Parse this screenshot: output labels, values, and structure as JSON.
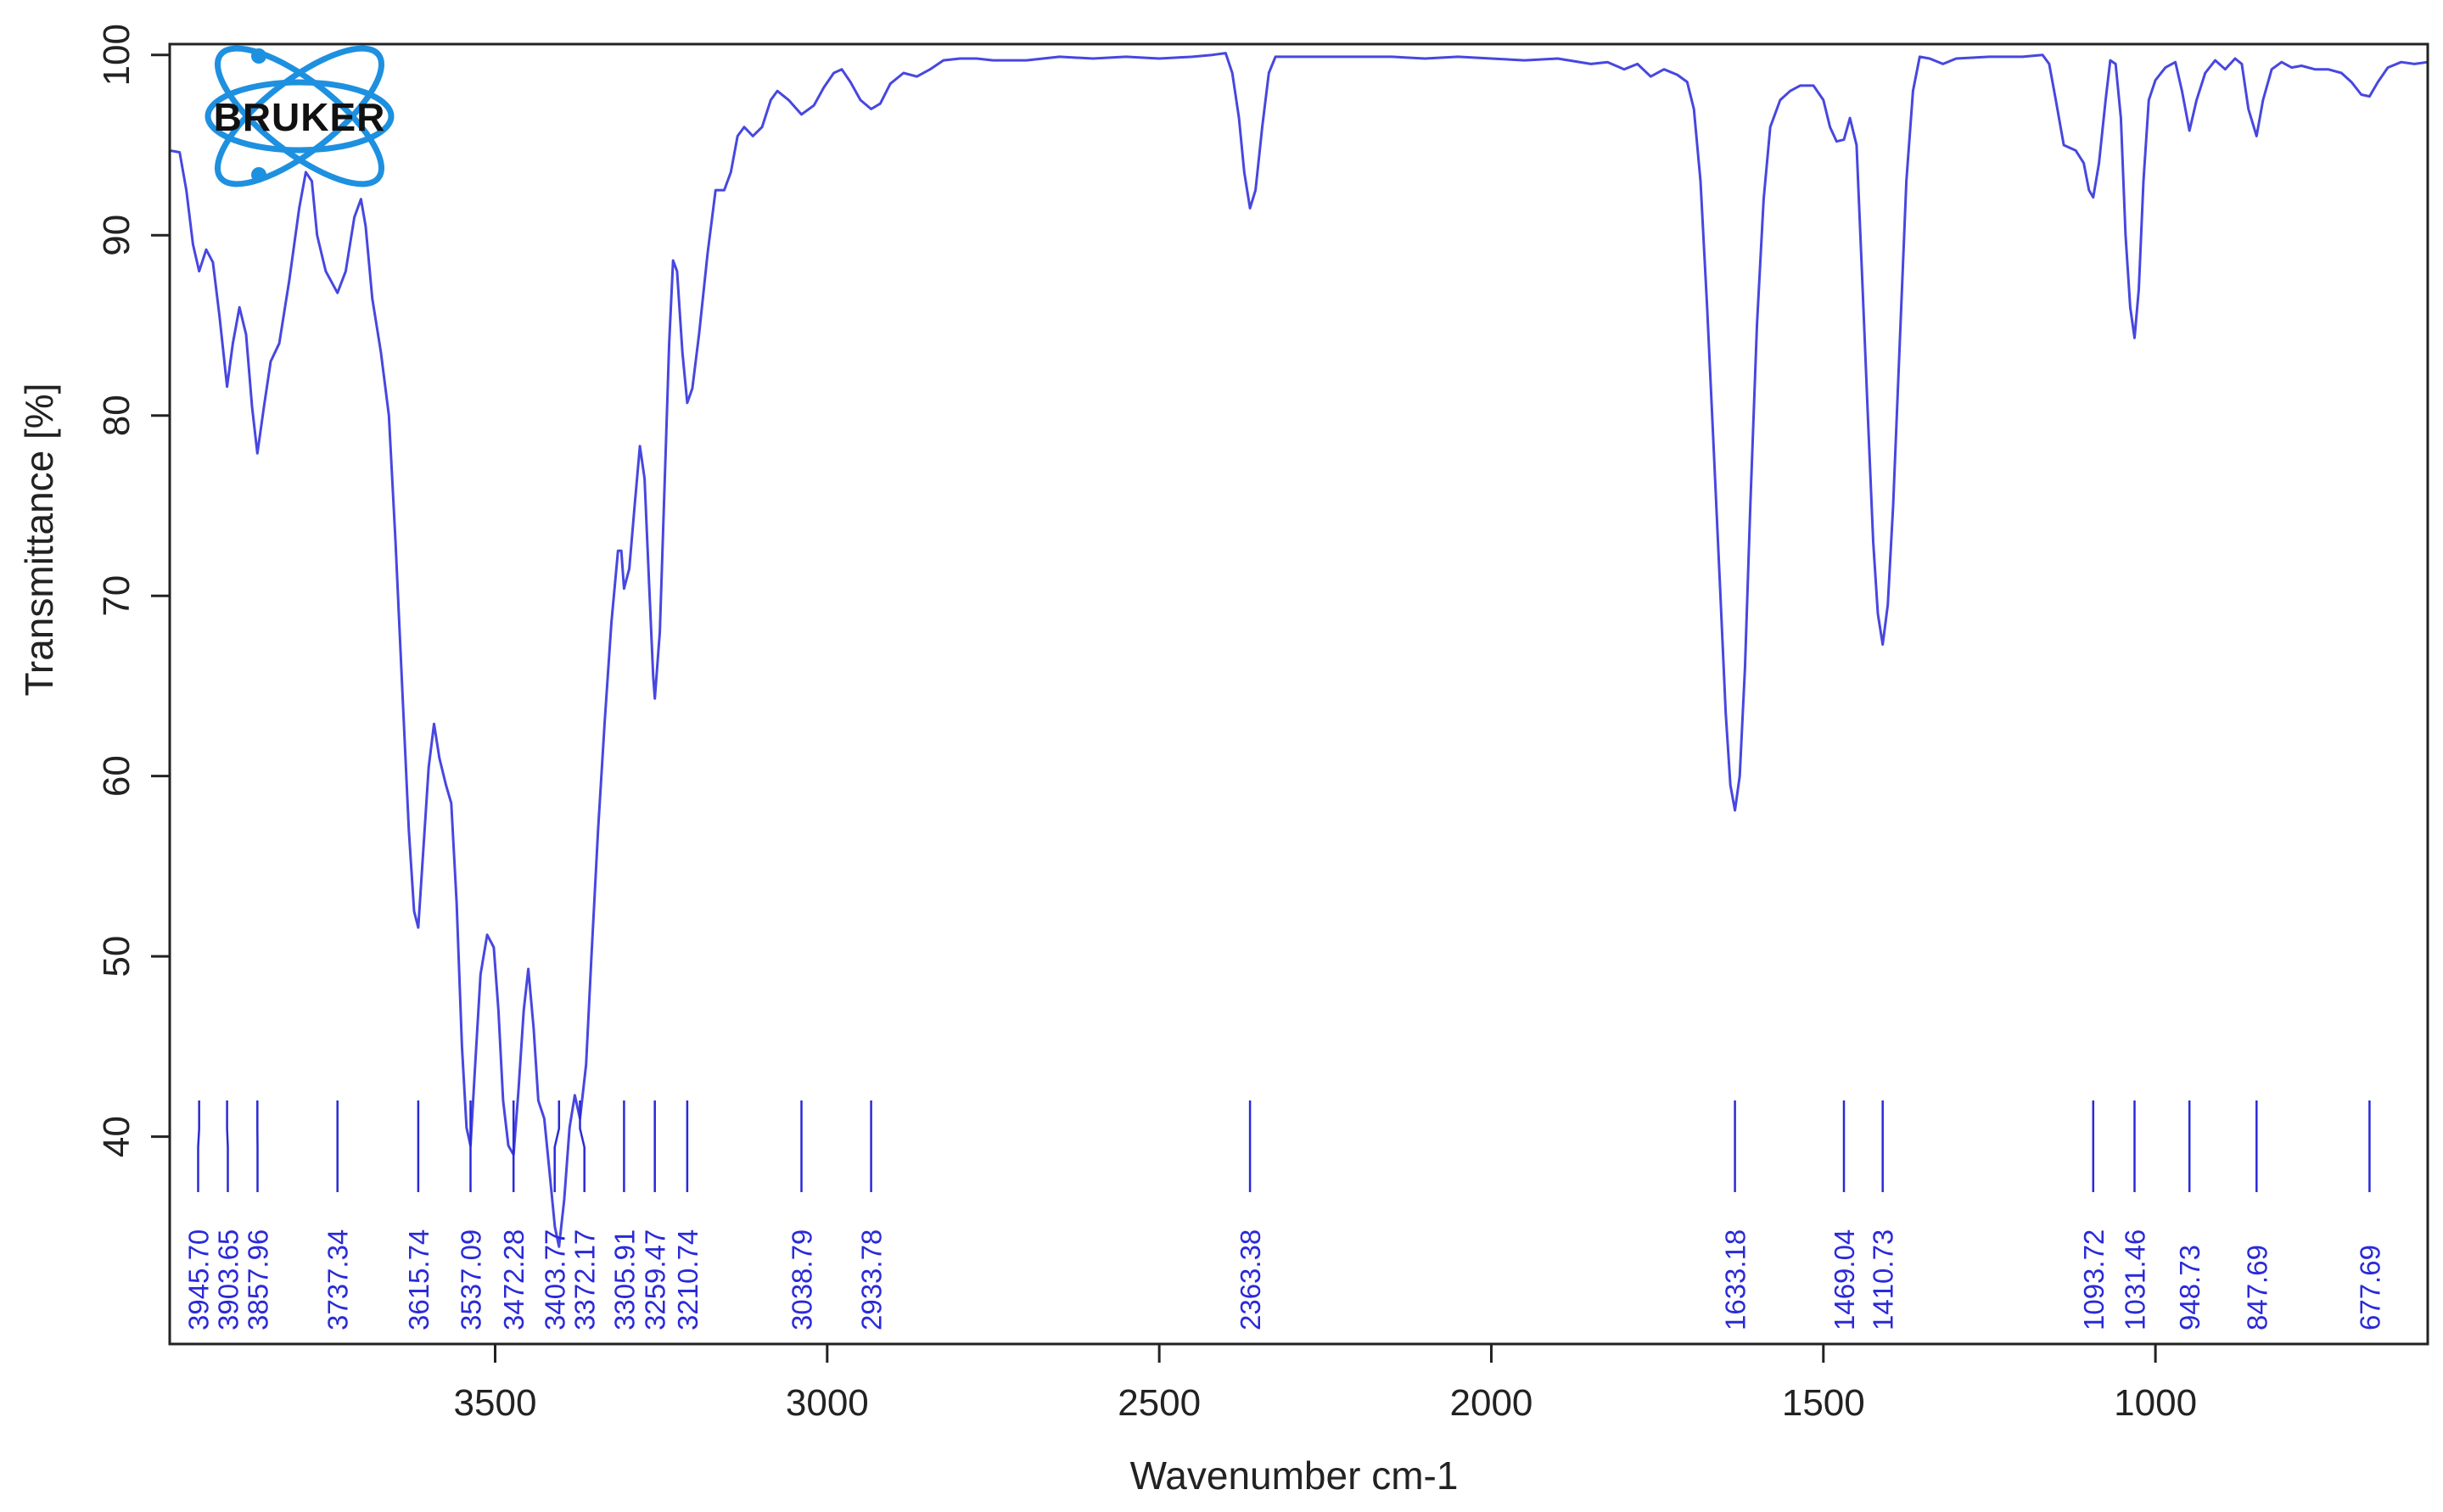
{
  "chart_data": {
    "type": "line",
    "title": "",
    "xlabel": "Wavenumber cm-1",
    "ylabel": "Transmittance [%]",
    "xlim": [
      3990,
      590
    ],
    "ylim": [
      28.5,
      100.6
    ],
    "x_reversed": true,
    "grid": false,
    "legend": "none",
    "xticks": [
      3500,
      3000,
      2500,
      2000,
      1500,
      1000
    ],
    "yticks": [
      40,
      50,
      60,
      70,
      80,
      90,
      100
    ],
    "series": [
      {
        "color": "#4747e0",
        "points": [
          [
            3990,
            94.7
          ],
          [
            3975,
            94.6
          ],
          [
            3965,
            92.5
          ],
          [
            3955,
            89.5
          ],
          [
            3945.7,
            88.0
          ],
          [
            3935,
            89.2
          ],
          [
            3925,
            88.5
          ],
          [
            3915,
            85.5
          ],
          [
            3903.65,
            81.6
          ],
          [
            3895,
            84.0
          ],
          [
            3885,
            86.0
          ],
          [
            3875,
            84.5
          ],
          [
            3866,
            80.5
          ],
          [
            3857.96,
            77.9
          ],
          [
            3848,
            80.5
          ],
          [
            3838,
            83.0
          ],
          [
            3825,
            84.0
          ],
          [
            3810,
            87.5
          ],
          [
            3795,
            91.5
          ],
          [
            3785,
            93.5
          ],
          [
            3776,
            93.0
          ],
          [
            3768,
            90.0
          ],
          [
            3755,
            88.0
          ],
          [
            3737.34,
            86.8
          ],
          [
            3725,
            88.0
          ],
          [
            3712,
            91.0
          ],
          [
            3702,
            92.0
          ],
          [
            3695,
            90.5
          ],
          [
            3685,
            86.5
          ],
          [
            3672,
            83.5
          ],
          [
            3660,
            80.0
          ],
          [
            3650,
            73.0
          ],
          [
            3640,
            65.0
          ],
          [
            3630,
            57.0
          ],
          [
            3622,
            52.5
          ],
          [
            3615.74,
            51.6
          ],
          [
            3608,
            56.0
          ],
          [
            3600,
            60.5
          ],
          [
            3592,
            62.9
          ],
          [
            3584,
            61.0
          ],
          [
            3574,
            59.5
          ],
          [
            3566,
            58.5
          ],
          [
            3558,
            53.0
          ],
          [
            3550,
            45.0
          ],
          [
            3543,
            40.5
          ],
          [
            3537.09,
            39.5
          ],
          [
            3530,
            44.0
          ],
          [
            3522,
            49.0
          ],
          [
            3512,
            51.2
          ],
          [
            3502,
            50.5
          ],
          [
            3495,
            47.0
          ],
          [
            3488,
            42.0
          ],
          [
            3480,
            39.5
          ],
          [
            3472.28,
            39.0
          ],
          [
            3465,
            42.5
          ],
          [
            3457,
            47.0
          ],
          [
            3450,
            49.3
          ],
          [
            3442,
            46.0
          ],
          [
            3435,
            42.0
          ],
          [
            3426,
            41.0
          ],
          [
            3418,
            38.0
          ],
          [
            3410,
            35.0
          ],
          [
            3403.77,
            33.9
          ],
          [
            3396,
            36.5
          ],
          [
            3388,
            40.5
          ],
          [
            3380,
            42.3
          ],
          [
            3372.17,
            41.0
          ],
          [
            3363,
            44.0
          ],
          [
            3355,
            50.0
          ],
          [
            3345,
            57.0
          ],
          [
            3335,
            63.0
          ],
          [
            3325,
            68.5
          ],
          [
            3315,
            72.5
          ],
          [
            3310,
            72.5
          ],
          [
            3305.91,
            70.4
          ],
          [
            3298,
            71.5
          ],
          [
            3290,
            75.0
          ],
          [
            3282,
            78.3
          ],
          [
            3275,
            76.5
          ],
          [
            3268,
            70.5
          ],
          [
            3262,
            65.5
          ],
          [
            3259.47,
            64.3
          ],
          [
            3252,
            68.0
          ],
          [
            3245,
            76.0
          ],
          [
            3238,
            84.0
          ],
          [
            3232,
            88.6
          ],
          [
            3226,
            88.0
          ],
          [
            3218,
            83.5
          ],
          [
            3210.74,
            80.7
          ],
          [
            3203,
            81.5
          ],
          [
            3193,
            84.5
          ],
          [
            3180,
            89.0
          ],
          [
            3168,
            92.5
          ],
          [
            3155,
            92.5
          ],
          [
            3145,
            93.5
          ],
          [
            3135,
            95.5
          ],
          [
            3125,
            96.0
          ],
          [
            3112,
            95.5
          ],
          [
            3098,
            96.0
          ],
          [
            3085,
            97.5
          ],
          [
            3075,
            98.0
          ],
          [
            3058,
            97.5
          ],
          [
            3038.79,
            96.7
          ],
          [
            3020,
            97.2
          ],
          [
            3005,
            98.2
          ],
          [
            2990,
            99.0
          ],
          [
            2978,
            99.2
          ],
          [
            2965,
            98.5
          ],
          [
            2950,
            97.5
          ],
          [
            2933.78,
            97.0
          ],
          [
            2920,
            97.3
          ],
          [
            2905,
            98.4
          ],
          [
            2885,
            99.0
          ],
          [
            2865,
            98.8
          ],
          [
            2845,
            99.2
          ],
          [
            2825,
            99.7
          ],
          [
            2800,
            99.8
          ],
          [
            2775,
            99.8
          ],
          [
            2750,
            99.7
          ],
          [
            2700,
            99.7
          ],
          [
            2650,
            99.9
          ],
          [
            2600,
            99.8
          ],
          [
            2550,
            99.9
          ],
          [
            2500,
            99.8
          ],
          [
            2450,
            99.9
          ],
          [
            2420,
            100.0
          ],
          [
            2400,
            100.1
          ],
          [
            2390,
            99.0
          ],
          [
            2380,
            96.5
          ],
          [
            2372,
            93.5
          ],
          [
            2363.38,
            91.5
          ],
          [
            2355,
            92.5
          ],
          [
            2345,
            96.0
          ],
          [
            2335,
            99.0
          ],
          [
            2325,
            99.9
          ],
          [
            2300,
            99.9
          ],
          [
            2250,
            99.9
          ],
          [
            2200,
            99.9
          ],
          [
            2150,
            99.9
          ],
          [
            2100,
            99.8
          ],
          [
            2050,
            99.9
          ],
          [
            2000,
            99.8
          ],
          [
            1950,
            99.7
          ],
          [
            1900,
            99.8
          ],
          [
            1850,
            99.5
          ],
          [
            1825,
            99.6
          ],
          [
            1800,
            99.2
          ],
          [
            1780,
            99.5
          ],
          [
            1760,
            98.8
          ],
          [
            1740,
            99.2
          ],
          [
            1720,
            98.9
          ],
          [
            1705,
            98.5
          ],
          [
            1695,
            97.0
          ],
          [
            1685,
            93.0
          ],
          [
            1675,
            86.0
          ],
          [
            1665,
            78.0
          ],
          [
            1655,
            70.0
          ],
          [
            1647,
            63.5
          ],
          [
            1640,
            59.5
          ],
          [
            1633.18,
            58.1
          ],
          [
            1626,
            60.0
          ],
          [
            1618,
            66.0
          ],
          [
            1610,
            75.0
          ],
          [
            1600,
            85.0
          ],
          [
            1590,
            92.0
          ],
          [
            1580,
            96.0
          ],
          [
            1565,
            97.5
          ],
          [
            1550,
            98.0
          ],
          [
            1535,
            98.3
          ],
          [
            1515,
            98.3
          ],
          [
            1500,
            97.5
          ],
          [
            1490,
            96.0
          ],
          [
            1480,
            95.2
          ],
          [
            1469.04,
            95.3
          ],
          [
            1460,
            96.5
          ],
          [
            1450,
            95.0
          ],
          [
            1442,
            88.0
          ],
          [
            1433,
            80.0
          ],
          [
            1425,
            73.0
          ],
          [
            1418,
            69.0
          ],
          [
            1410.73,
            67.3
          ],
          [
            1403,
            69.5
          ],
          [
            1395,
            75.0
          ],
          [
            1385,
            84.0
          ],
          [
            1375,
            93.0
          ],
          [
            1365,
            98.0
          ],
          [
            1355,
            99.9
          ],
          [
            1340,
            99.8
          ],
          [
            1320,
            99.5
          ],
          [
            1300,
            99.8
          ],
          [
            1250,
            99.9
          ],
          [
            1200,
            99.9
          ],
          [
            1170,
            100.0
          ],
          [
            1160,
            99.5
          ],
          [
            1150,
            97.5
          ],
          [
            1138,
            95.0
          ],
          [
            1120,
            94.7
          ],
          [
            1108,
            94.0
          ],
          [
            1100,
            92.5
          ],
          [
            1093.72,
            92.1
          ],
          [
            1085,
            94.0
          ],
          [
            1075,
            97.5
          ],
          [
            1068,
            99.7
          ],
          [
            1060,
            99.5
          ],
          [
            1052,
            96.5
          ],
          [
            1045,
            90.0
          ],
          [
            1038,
            86.0
          ],
          [
            1031.46,
            84.3
          ],
          [
            1025,
            87.0
          ],
          [
            1018,
            93.0
          ],
          [
            1010,
            97.5
          ],
          [
            1000,
            98.6
          ],
          [
            985,
            99.3
          ],
          [
            970,
            99.6
          ],
          [
            960,
            98.0
          ],
          [
            948.73,
            95.8
          ],
          [
            938,
            97.5
          ],
          [
            925,
            99.0
          ],
          [
            910,
            99.7
          ],
          [
            895,
            99.2
          ],
          [
            880,
            99.8
          ],
          [
            870,
            99.5
          ],
          [
            860,
            97.0
          ],
          [
            847.69,
            95.5
          ],
          [
            838,
            97.5
          ],
          [
            825,
            99.2
          ],
          [
            810,
            99.6
          ],
          [
            795,
            99.3
          ],
          [
            780,
            99.4
          ],
          [
            760,
            99.2
          ],
          [
            740,
            99.2
          ],
          [
            720,
            99.0
          ],
          [
            705,
            98.5
          ],
          [
            690,
            97.8
          ],
          [
            677.69,
            97.7
          ],
          [
            665,
            98.5
          ],
          [
            650,
            99.3
          ],
          [
            630,
            99.6
          ],
          [
            610,
            99.5
          ],
          [
            590,
            99.6
          ]
        ]
      }
    ],
    "peaks": [
      {
        "x": 3945.7,
        "label": "3945.70"
      },
      {
        "x": 3903.65,
        "label": "3903.65"
      },
      {
        "x": 3857.96,
        "label": "3857.96"
      },
      {
        "x": 3737.34,
        "label": "3737.34"
      },
      {
        "x": 3615.74,
        "label": "3615.74"
      },
      {
        "x": 3537.09,
        "label": "3537.09"
      },
      {
        "x": 3472.28,
        "label": "3472.28"
      },
      {
        "x": 3403.77,
        "label": "3403.77"
      },
      {
        "x": 3372.17,
        "label": "3372.17"
      },
      {
        "x": 3305.91,
        "label": "3305.91"
      },
      {
        "x": 3259.47,
        "label": "3259.47"
      },
      {
        "x": 3210.74,
        "label": "3210.74"
      },
      {
        "x": 3038.79,
        "label": "3038.79"
      },
      {
        "x": 2933.78,
        "label": "2933.78"
      },
      {
        "x": 2363.38,
        "label": "2363.38"
      },
      {
        "x": 1633.18,
        "label": "1633.18"
      },
      {
        "x": 1469.04,
        "label": "1469.04"
      },
      {
        "x": 1410.73,
        "label": "1410.73"
      },
      {
        "x": 1093.72,
        "label": "1093.72"
      },
      {
        "x": 1031.46,
        "label": "1031.46"
      },
      {
        "x": 948.73,
        "label": "948.73"
      },
      {
        "x": 847.69,
        "label": "847.69"
      },
      {
        "x": 677.69,
        "label": "677.69"
      }
    ],
    "peak_color": "#2a2ad8"
  },
  "logo": {
    "text": "BRUKER",
    "name": "bruker-logo",
    "ring_color": "#1e90e0"
  }
}
